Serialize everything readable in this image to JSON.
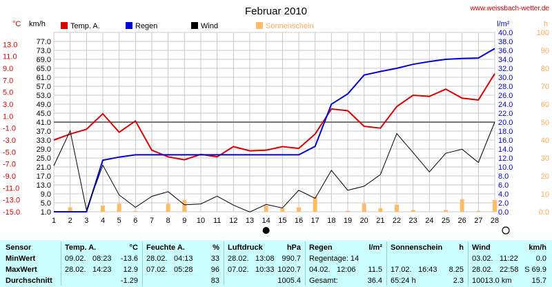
{
  "chart_data": {
    "type": "line",
    "title": "Februar 2010",
    "source": "www.weissbach-wetter.de",
    "x_ticks": [
      "1",
      "2",
      "3",
      "4",
      "5",
      "6",
      "7",
      "8",
      "9",
      "10",
      "11",
      "12",
      "13",
      "14",
      "15",
      "16",
      "17",
      "18",
      "19",
      "20",
      "21",
      "22",
      "23",
      "24",
      "25",
      "26",
      "27",
      "28"
    ],
    "x": [
      1,
      2,
      3,
      4,
      5,
      6,
      7,
      8,
      9,
      10,
      11,
      12,
      13,
      14,
      15,
      16,
      17,
      18,
      19,
      20,
      21,
      22,
      23,
      24,
      25,
      26,
      27,
      28
    ],
    "axes": {
      "temp": {
        "unit": "°C",
        "min": -15,
        "max": 15,
        "ticks": [
          "-15.0",
          "-13.0",
          "-11.0",
          "-9.0",
          "-7.0",
          "-5.0",
          "-3.0",
          "-1.0",
          "1.0",
          "3.0",
          "5.0",
          "7.0",
          "9.0",
          "11.0",
          "13.0"
        ]
      },
      "wind": {
        "unit": "km/h",
        "min": 1,
        "max": 81,
        "ticks": [
          "1.0",
          "5.0",
          "9.0",
          "13.0",
          "17.0",
          "21.0",
          "25.0",
          "29.0",
          "33.0",
          "37.0",
          "41.0",
          "45.0",
          "49.0",
          "53.0",
          "57.0",
          "61.0",
          "65.0",
          "69.0",
          "73.0",
          "77.0"
        ]
      },
      "rain": {
        "unit": "l/m²",
        "min": 0,
        "max": 40,
        "ticks": [
          "0.0",
          "2.0",
          "4.0",
          "6.0",
          "8.0",
          "10.0",
          "12.0",
          "14.0",
          "16.0",
          "18.0",
          "20.0",
          "22.0",
          "24.0",
          "26.0",
          "28.0",
          "30.0",
          "32.0",
          "34.0",
          "36.0",
          "38.0",
          "40.0"
        ]
      },
      "sun": {
        "unit": "h",
        "min": 0,
        "max": 100,
        "ticks": [
          "0.0",
          "10",
          "20",
          "30",
          "40",
          "50",
          "60",
          "70",
          "80",
          "90",
          "100"
        ]
      }
    },
    "legend": [
      {
        "label": "Temp. A.",
        "color": "#dd0000"
      },
      {
        "label": "Regen",
        "color": "#0000dd"
      },
      {
        "label": "Wind",
        "color": "#000000"
      },
      {
        "label": "Sonnenschein",
        "color": "#ffbb66"
      }
    ],
    "series": [
      {
        "name": "Temp. A.",
        "axis": "temp",
        "color": "#dd0000",
        "values": [
          -3.0,
          -2.0,
          -1.2,
          1.4,
          -1.7,
          0.2,
          -4.7,
          -5.8,
          -6.3,
          -5.4,
          -5.8,
          -4.1,
          -4.8,
          -4.7,
          -4.1,
          -4.4,
          -2.0,
          2.2,
          1.9,
          -0.7,
          -1.0,
          2.6,
          4.5,
          4.3,
          5.5,
          4.0,
          3.7,
          8.1
        ]
      },
      {
        "name": "Regen",
        "axis": "rain",
        "color": "#0000dd",
        "values": [
          0,
          0,
          0,
          11.5,
          12.2,
          12.7,
          12.7,
          12.7,
          12.7,
          12.7,
          12.7,
          12.7,
          12.7,
          12.7,
          12.7,
          12.7,
          14.6,
          24.0,
          26.3,
          30.5,
          31.3,
          32.0,
          32.9,
          33.5,
          34.0,
          34.2,
          34.3,
          36.4
        ]
      },
      {
        "name": "Wind",
        "axis": "wind",
        "color": "#000000",
        "values": [
          21.6,
          37.1,
          1.8,
          21.8,
          8.5,
          3.0,
          7.9,
          10.0,
          4.1,
          4.5,
          8.0,
          4.0,
          0.9,
          4.3,
          2.7,
          10.6,
          7.0,
          19.5,
          10.6,
          12.4,
          17.6,
          35.9,
          27.4,
          18.8,
          27.1,
          28.9,
          23.0,
          41.0
        ]
      },
      {
        "name": "Sonnenschein",
        "axis": "sun",
        "color": "#ffbb66",
        "values": [
          0,
          2.5,
          0,
          3.5,
          4.5,
          0.5,
          0,
          4.5,
          6.5,
          0,
          0,
          0,
          0,
          3.5,
          2,
          2.5,
          8.25,
          0,
          0.5,
          4.5,
          2,
          4,
          1,
          0,
          1,
          7,
          0.5,
          6.5
        ]
      }
    ],
    "reference_line": {
      "axis": "temp",
      "value": 0
    },
    "moon_phases": [
      {
        "symbol": "full",
        "x": 14
      },
      {
        "symbol": "new",
        "x": 28
      }
    ]
  },
  "stats": {
    "row_labels": [
      "Sensor",
      "MinWert",
      "MaxWert",
      "Durchschnitt"
    ],
    "temp": {
      "title": "Temp. A.",
      "unit": "°C",
      "min_date": "09.02.",
      "min_time": "08:23",
      "min": "-13.6",
      "max_date": "28.02.",
      "max_time": "14:23",
      "max": "12.9",
      "avg": "-1.29"
    },
    "humidity": {
      "title": "Feuchte A.",
      "unit": "%",
      "min_date": "28.02.",
      "min_time": "04:13",
      "min": "33",
      "max_date": "07.02.",
      "max_time": "05:28",
      "max": "96",
      "avg": "83"
    },
    "pressure": {
      "title": "Luftdruck",
      "unit": "hPa",
      "min_date": "28.02.",
      "min_time": "13:08",
      "min": "990.7",
      "max_date": "07.02.",
      "max_time": "10:33",
      "max": "1020.7",
      "avg": "1005.4"
    },
    "rain": {
      "title": "Regen",
      "unit": "l/m²",
      "min_text": "Regentage: 14",
      "max_date": "04.02.",
      "max_time": "12:06",
      "max": "11.5",
      "avg_label": "Gesamt:",
      "avg": "36.4"
    },
    "sun": {
      "title": "Sonnenschein",
      "unit": "h",
      "max_date": "17.02.",
      "max_time": "16:43",
      "max": "8.25",
      "avg_label": "65:24 h",
      "avg": "2.3"
    },
    "wind": {
      "title": "Wind",
      "unit": "km/h",
      "min_date": "03.02.",
      "min_time": "11:22",
      "min": "0.0",
      "max_date": "28.02.",
      "max_time": "22:58",
      "max": "S 69.9",
      "avg_label": "10013.0 km",
      "avg": "15.7"
    }
  }
}
